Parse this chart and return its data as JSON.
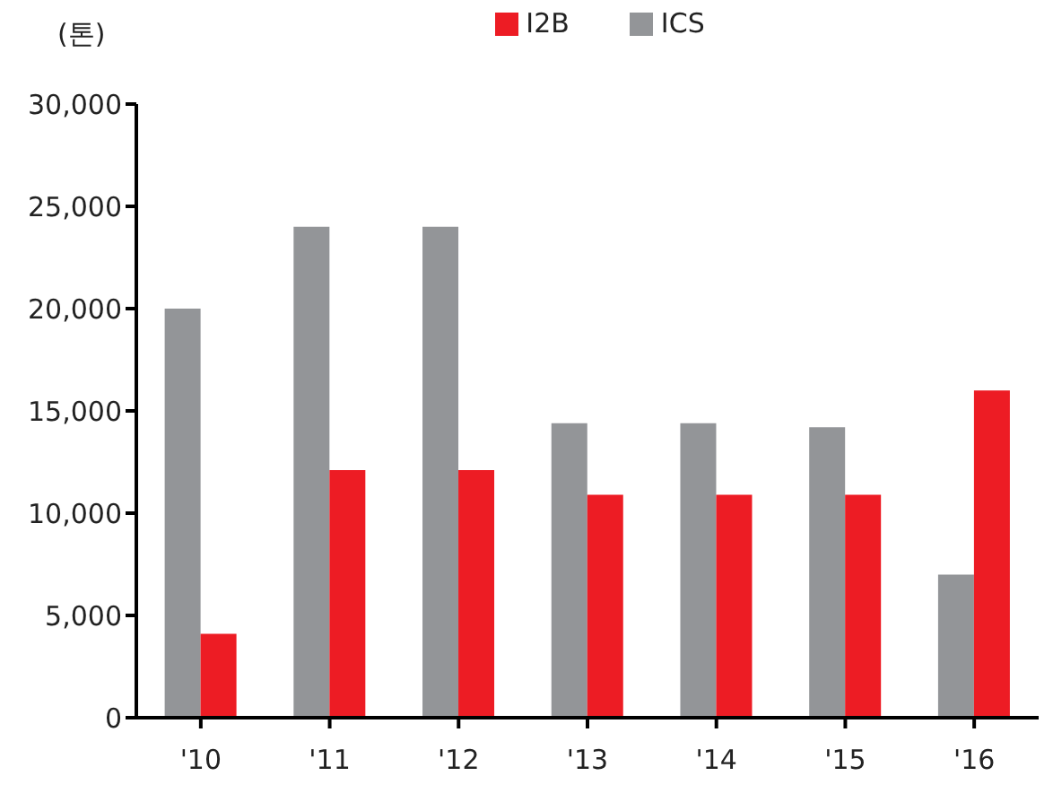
{
  "chart_data": {
    "type": "bar",
    "ylabel": "(톤)",
    "categories": [
      "'10",
      "'11",
      "'12",
      "'13",
      "'14",
      "'15",
      "'16"
    ],
    "series": [
      {
        "name": "ICS",
        "color": "#939598",
        "values": [
          20000,
          24000,
          24000,
          14400,
          14400,
          14200,
          7000
        ]
      },
      {
        "name": "I2B",
        "color": "#ed1c24",
        "values": [
          4100,
          12100,
          12100,
          10900,
          10900,
          10900,
          16000
        ]
      }
    ],
    "ylim": [
      0,
      30000
    ],
    "yticks": [
      0,
      {
        "value": 5000,
        "label": "5,000"
      },
      {
        "value": 10000,
        "label": "10,000"
      },
      {
        "value": 15000,
        "label": "15,000"
      },
      {
        "value": 20000,
        "label": "20,000"
      },
      {
        "value": 25000,
        "label": "25,000"
      },
      {
        "value": 30000,
        "label": "30,000"
      }
    ],
    "grid": false,
    "legend": "top"
  }
}
